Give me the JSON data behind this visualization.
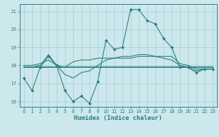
{
  "xlabel": "Humidex (Indice chaleur)",
  "bg_color": "#cce8ec",
  "grid_color": "#aacfd6",
  "line_color": "#2a7d7d",
  "xlim": [
    -0.5,
    23.5
  ],
  "ylim": [
    15.7,
    21.4
  ],
  "yticks": [
    16,
    17,
    18,
    19,
    20,
    21
  ],
  "xticks": [
    0,
    1,
    2,
    3,
    4,
    5,
    6,
    7,
    8,
    9,
    10,
    11,
    12,
    13,
    14,
    15,
    16,
    17,
    18,
    19,
    20,
    21,
    22,
    23
  ],
  "series1_x": [
    0,
    1,
    2,
    3,
    4,
    5,
    6,
    7,
    8,
    9,
    10,
    11,
    12,
    13,
    14,
    15,
    16,
    17,
    18,
    19,
    20,
    21,
    22,
    23
  ],
  "series1_y": [
    17.3,
    16.6,
    17.9,
    18.5,
    18.0,
    16.6,
    16.0,
    16.3,
    15.9,
    17.1,
    19.4,
    18.9,
    19.0,
    21.1,
    21.1,
    20.5,
    20.3,
    19.5,
    19.0,
    17.9,
    17.9,
    17.6,
    17.8,
    17.8
  ],
  "series2_y": [
    17.9,
    17.9,
    18.0,
    18.6,
    18.0,
    17.9,
    18.2,
    18.3,
    18.3,
    18.4,
    18.4,
    18.4,
    18.4,
    18.4,
    18.5,
    18.5,
    18.5,
    18.5,
    18.5,
    18.1,
    18.0,
    17.8,
    17.8,
    17.8
  ],
  "series3_y": [
    17.9,
    17.9,
    17.9,
    17.9,
    17.9,
    17.9,
    17.9,
    17.9,
    17.9,
    17.9,
    17.9,
    17.9,
    17.9,
    17.9,
    17.9,
    17.9,
    17.9,
    17.9,
    17.9,
    17.9,
    17.9,
    17.9,
    17.9,
    17.9
  ],
  "series4_y": [
    18.0,
    18.0,
    18.1,
    18.3,
    18.0,
    17.5,
    17.3,
    17.6,
    17.7,
    18.0,
    18.3,
    18.4,
    18.5,
    18.5,
    18.6,
    18.6,
    18.5,
    18.4,
    18.3,
    18.0,
    17.9,
    17.7,
    17.8,
    17.8
  ]
}
